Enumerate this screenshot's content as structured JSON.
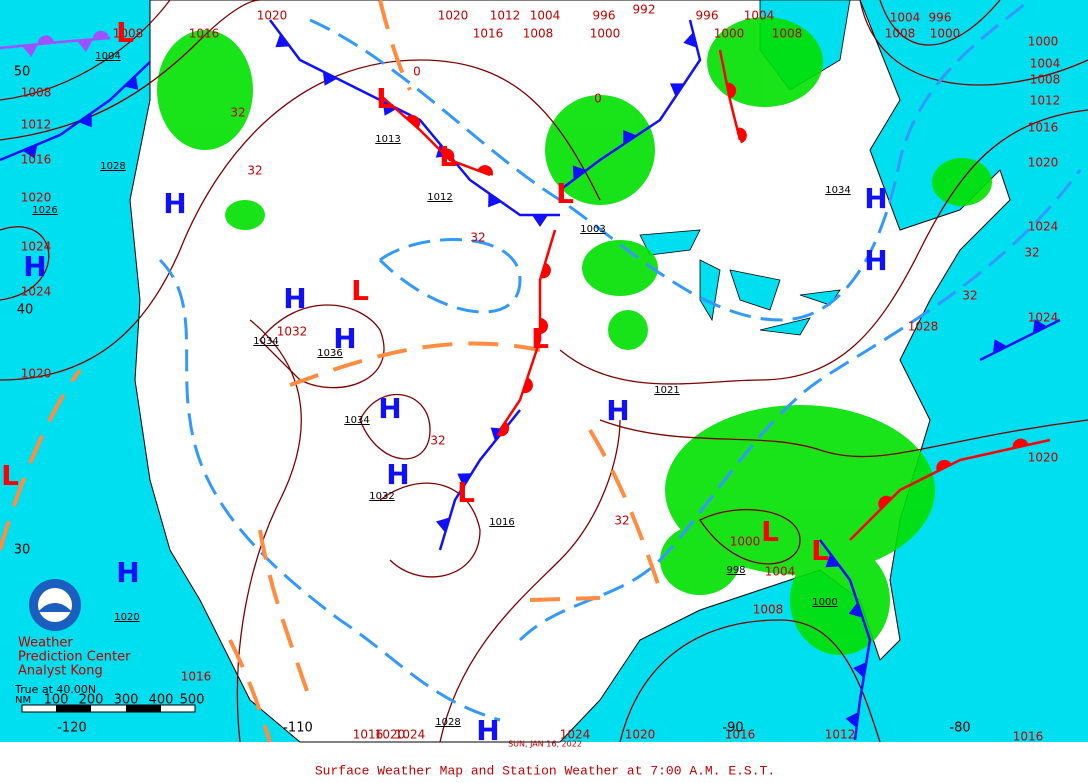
{
  "caption": "Surface Weather Map and Station Weather at 7:00 A.M. E.S.T.",
  "credit": [
    "Weather",
    "Prediction Center",
    "Analyst Kong"
  ],
  "date": "SUN, JAN 16, 2022",
  "scale": {
    "title": "True at 40.00N",
    "unit": "NM",
    "marks": [
      "100",
      "200",
      "300",
      "400",
      "500"
    ]
  },
  "latitudes": [
    "50",
    "40",
    "30"
  ],
  "longitudes": [
    "-120",
    "-110",
    "-90",
    "-80"
  ],
  "isobar_labels": [
    "1020",
    "1020",
    "1012",
    "1004",
    "996",
    "992",
    "996",
    "1004",
    "1004",
    "996",
    "1008",
    "1016",
    "1016",
    "1008",
    "1000",
    "1000",
    "1008",
    "1008",
    "1000",
    "1000",
    "1004",
    "1008",
    "1012",
    "1016",
    "1020",
    "1024",
    "1024",
    "1020",
    "1008",
    "1012",
    "1016",
    "1020",
    "1024",
    "1024",
    "1020",
    "1032",
    "1028",
    "1000",
    "1004",
    "1008",
    "1016",
    "1016",
    "1020",
    "1024",
    "1024",
    "1020",
    "1016",
    "1012",
    "1016"
  ],
  "analyzed_pressures": [
    "1004",
    "1028",
    "1026",
    "1013",
    "1012",
    "1003",
    "1034",
    "1034",
    "1036",
    "1034",
    "1032",
    "1016",
    "1021",
    "998",
    "1000",
    "1020",
    "1028"
  ],
  "temperature_labels": [
    "32",
    "32",
    "0",
    "0",
    "32",
    "32",
    "32",
    "32",
    "32"
  ],
  "highs": [
    "H",
    "H",
    "H",
    "H",
    "H",
    "H",
    "H",
    "H",
    "H",
    "H",
    "H"
  ],
  "lows": [
    "L",
    "L",
    "L",
    "L",
    "L",
    "L",
    "L",
    "L",
    "L",
    "L"
  ]
}
